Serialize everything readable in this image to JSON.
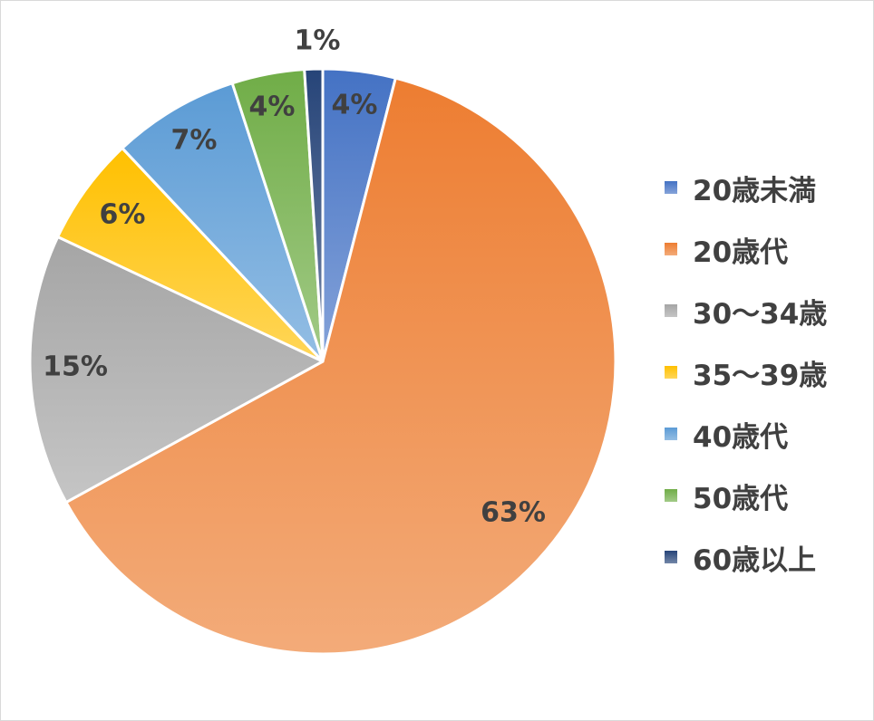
{
  "chart_data": {
    "type": "pie",
    "categories": [
      "20歳未満",
      "20歳代",
      "30～34歳",
      "35～39歳",
      "40歳代",
      "50歳代",
      "60歳以上"
    ],
    "values": [
      4,
      63,
      15,
      6,
      7,
      4,
      1
    ],
    "data_labels": [
      "4%",
      "63%",
      "15%",
      "6%",
      "7%",
      "4%",
      "1%"
    ],
    "colors": [
      "#4472c4",
      "#ed7d31",
      "#a5a5a5",
      "#ffc000",
      "#5b9bd5",
      "#70ad47",
      "#264478"
    ],
    "start_angle_deg": 0,
    "direction": "clockwise",
    "legend_position": "right"
  }
}
